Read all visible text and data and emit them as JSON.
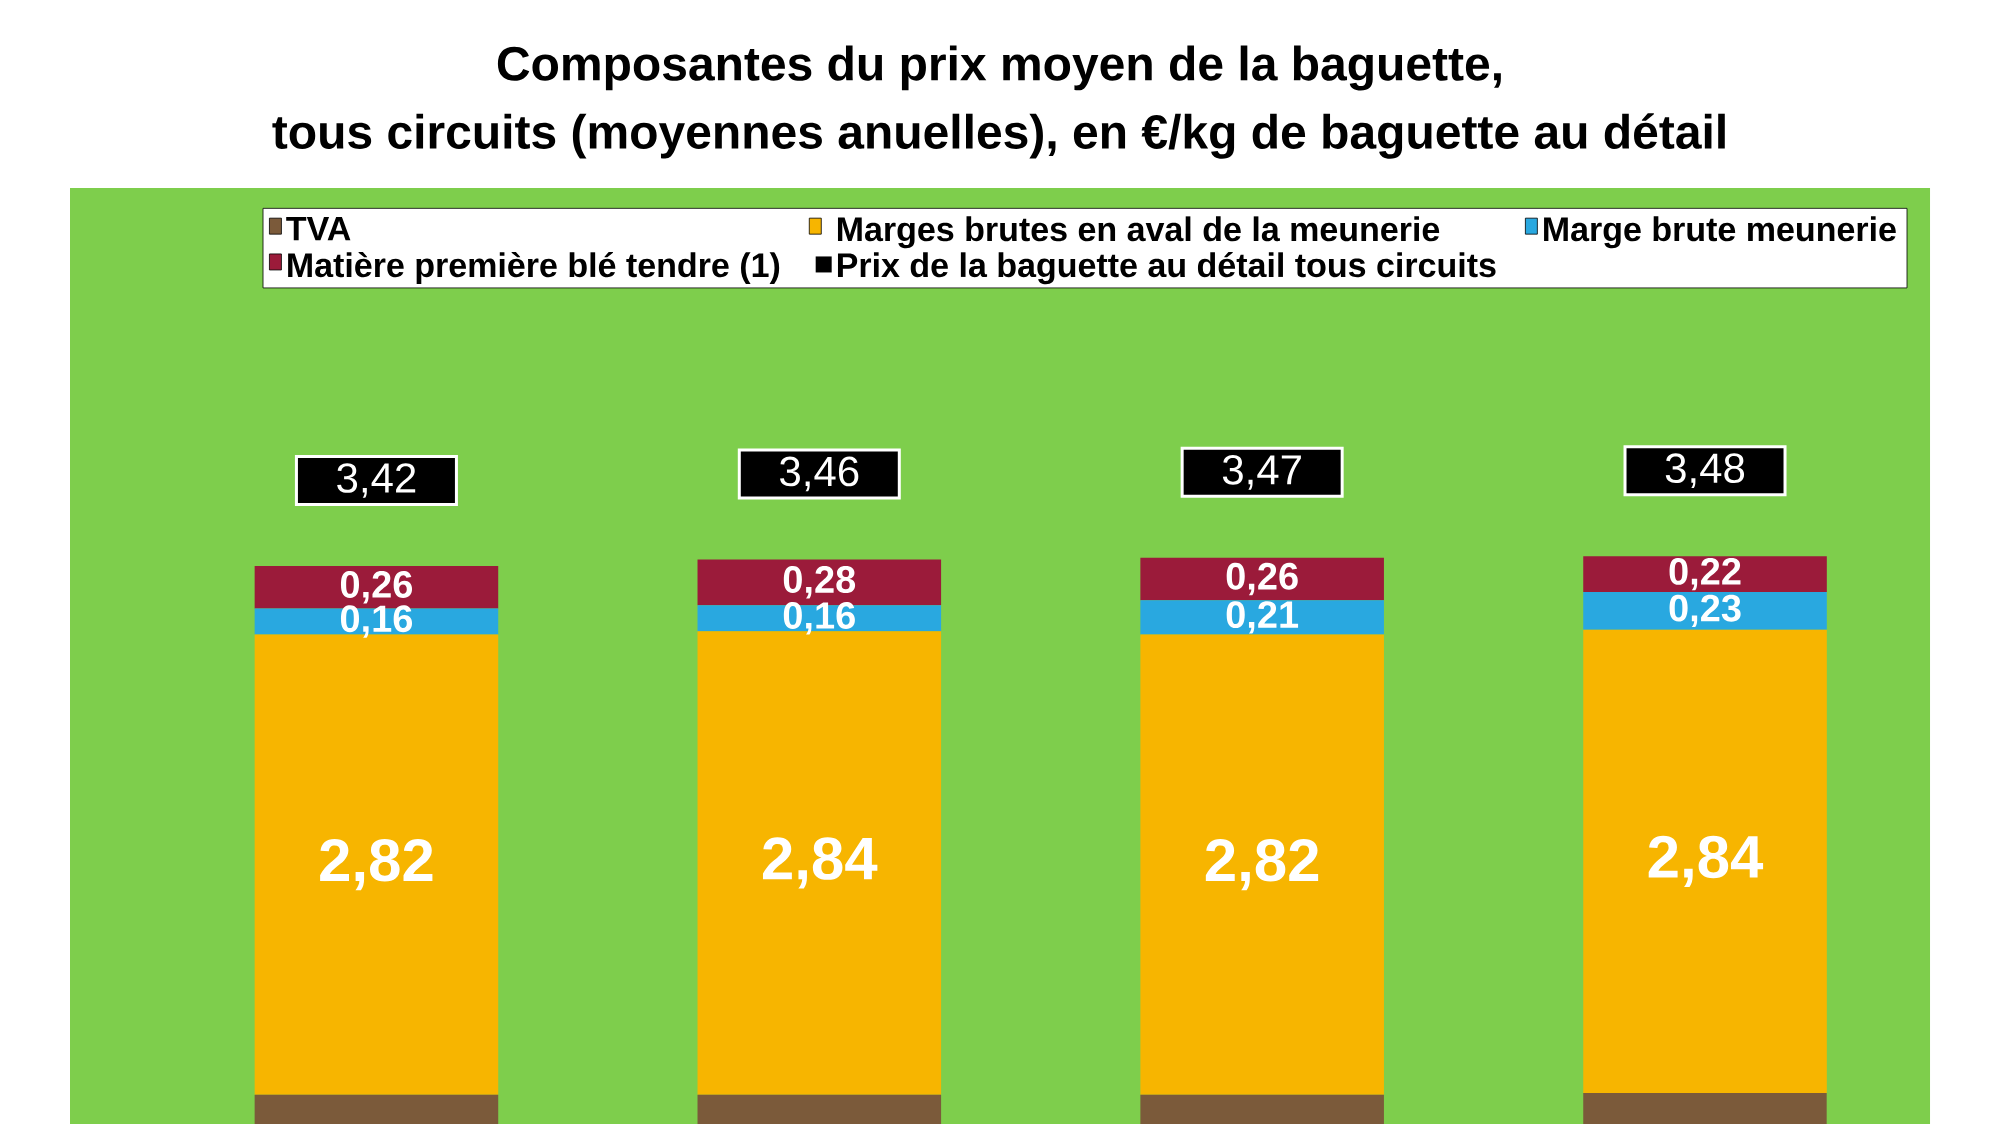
{
  "chart_data": {
    "type": "bar",
    "stacked": true,
    "title": "Composantes du prix moyen de la baguette,",
    "subtitle": "tous circuits (moyennes anuelles), en €/kg de baguette au détail",
    "categories": [
      null,
      null,
      null,
      null
    ],
    "series": [
      {
        "name": "TVA",
        "color": "#7b5a3a",
        "values": [
          0.18,
          0.18,
          0.18,
          0.19
        ]
      },
      {
        "name": "Marges brutes en aval de la meunerie",
        "color": "#f7b500",
        "values": [
          2.82,
          2.84,
          2.82,
          2.84
        ],
        "value_labels": [
          "2,82",
          "2,84",
          "2,82",
          "2,84"
        ]
      },
      {
        "name": "Marge brute meunerie",
        "color": "#29a8e0",
        "values": [
          0.16,
          0.16,
          0.21,
          0.23
        ],
        "value_labels": [
          "0,16",
          "0,16",
          "0,21",
          "0,23"
        ]
      },
      {
        "name": "Matière première blé tendre (1)",
        "color": "#9b1b3a",
        "values": [
          0.26,
          0.28,
          0.26,
          0.22
        ],
        "value_labels": [
          "0,26",
          "0,28",
          "0,26",
          "0,22"
        ]
      }
    ],
    "annotations": [
      "Prix de la baguette au détail tous circuits"
    ],
    "totals": [
      "3,42",
      "3,46",
      "3,47",
      "3,48"
    ],
    "ylim": [
      0,
      5.7
    ],
    "legend": "top"
  }
}
